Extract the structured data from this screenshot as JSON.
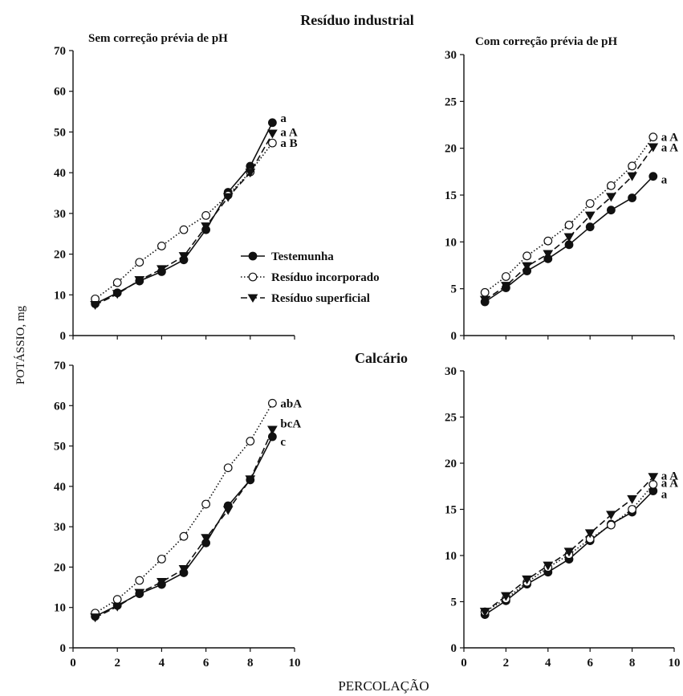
{
  "figure": {
    "row_titles": [
      "Resíduo industrial",
      "Calcário"
    ],
    "col_titles": [
      "Sem correção prévia de pH",
      "Com correção prévia de pH"
    ],
    "ylabel": "POTÁSSIO, mg",
    "xlabel": "PERCOLAÇÃO"
  },
  "legend": {
    "placement": "inside panel 1, center-right",
    "items": [
      {
        "label": "Testemunha",
        "marker": "filled-circle",
        "line": "solid"
      },
      {
        "label": "Resíduo incorporado",
        "marker": "open-circle",
        "line": "dotted"
      },
      {
        "label": "Resíduo superficial",
        "marker": "filled-triangle-down",
        "line": "dashed"
      }
    ]
  },
  "style": {
    "colors": {
      "line": "#111111",
      "marker_fill": "#111111",
      "open_fill": "#ffffff"
    }
  },
  "chart_data": [
    {
      "type": "line",
      "title": "Sem correção prévia de pH",
      "xlabel": "",
      "ylabel": "",
      "xlim": [
        0,
        10
      ],
      "ylim": [
        0,
        70
      ],
      "xticks": [
        0,
        2,
        4,
        6,
        8,
        10
      ],
      "yticks": [
        0,
        10,
        20,
        30,
        40,
        50,
        60,
        70
      ],
      "show_xticklabels": false,
      "x": [
        1,
        2,
        3,
        4,
        5,
        6,
        7,
        8,
        9
      ],
      "series": [
        {
          "name": "Testemunha",
          "values": [
            7.8,
            10.5,
            13.4,
            15.7,
            18.6,
            26.0,
            35.2,
            41.6,
            52.3
          ]
        },
        {
          "name": "Resíduo incorporado",
          "values": [
            9.0,
            13.0,
            18.0,
            22.0,
            26.0,
            29.5,
            34.5,
            40.2,
            47.3
          ]
        },
        {
          "name": "Resíduo superficial",
          "values": [
            7.5,
            10.2,
            13.6,
            16.3,
            19.5,
            26.8,
            34.0,
            40.0,
            49.6
          ]
        }
      ],
      "annotations": [
        {
          "text": "a",
          "series": "Testemunha"
        },
        {
          "text": "a A",
          "series": "Resíduo superficial"
        },
        {
          "text": "a B",
          "series": "Resíduo incorporado"
        }
      ]
    },
    {
      "type": "line",
      "title": "Com correção prévia de pH",
      "xlabel": "",
      "ylabel": "",
      "xlim": [
        0,
        10
      ],
      "ylim": [
        0,
        30
      ],
      "xticks": [
        0,
        2,
        4,
        6,
        8,
        10
      ],
      "yticks": [
        0,
        5,
        10,
        15,
        20,
        25,
        30
      ],
      "show_xticklabels": false,
      "x": [
        1,
        2,
        3,
        4,
        5,
        6,
        7,
        8,
        9
      ],
      "series": [
        {
          "name": "Testemunha",
          "values": [
            3.6,
            5.1,
            6.9,
            8.2,
            9.7,
            11.6,
            13.4,
            14.7,
            17.0
          ]
        },
        {
          "name": "Resíduo incorporado",
          "values": [
            4.6,
            6.3,
            8.5,
            10.1,
            11.8,
            14.1,
            16.0,
            18.1,
            21.2
          ]
        },
        {
          "name": "Resíduo superficial",
          "values": [
            3.8,
            5.3,
            7.4,
            8.7,
            10.5,
            12.8,
            14.8,
            17.0,
            20.1
          ]
        }
      ],
      "annotations": [
        {
          "text": "a A",
          "series": "Resíduo incorporado"
        },
        {
          "text": "a A",
          "series": "Resíduo superficial"
        },
        {
          "text": "a",
          "series": "Testemunha"
        }
      ]
    },
    {
      "type": "line",
      "title": "",
      "xlabel": "",
      "ylabel": "",
      "xlim": [
        0,
        10
      ],
      "ylim": [
        0,
        70
      ],
      "xticks": [
        0,
        2,
        4,
        6,
        8,
        10
      ],
      "yticks": [
        0,
        10,
        20,
        30,
        40,
        50,
        60,
        70
      ],
      "show_xticklabels": true,
      "x": [
        1,
        2,
        3,
        4,
        5,
        6,
        7,
        8,
        9
      ],
      "series": [
        {
          "name": "Testemunha",
          "values": [
            7.8,
            10.5,
            13.4,
            15.7,
            18.6,
            26.0,
            35.2,
            41.6,
            52.3
          ]
        },
        {
          "name": "Resíduo incorporado",
          "values": [
            8.6,
            12.0,
            16.7,
            22.0,
            27.6,
            35.6,
            44.6,
            51.2,
            60.6
          ]
        },
        {
          "name": "Resíduo superficial",
          "values": [
            7.5,
            10.2,
            13.6,
            16.3,
            19.5,
            27.2,
            34.1,
            41.7,
            54.0
          ]
        }
      ],
      "annotations": [
        {
          "text": "abA",
          "series": "Resíduo incorporado"
        },
        {
          "text": "bcA",
          "series": "Resíduo superficial"
        },
        {
          "text": "c",
          "series": "Testemunha"
        }
      ]
    },
    {
      "type": "line",
      "title": "",
      "xlabel": "",
      "ylabel": "",
      "xlim": [
        0,
        10
      ],
      "ylim": [
        0,
        30
      ],
      "xticks": [
        0,
        2,
        4,
        6,
        8,
        10
      ],
      "yticks": [
        0,
        5,
        10,
        15,
        20,
        25,
        30
      ],
      "show_xticklabels": true,
      "x": [
        1,
        2,
        3,
        4,
        5,
        6,
        7,
        8,
        9
      ],
      "series": [
        {
          "name": "Testemunha",
          "values": [
            3.6,
            5.1,
            6.9,
            8.2,
            9.6,
            11.6,
            13.4,
            14.7,
            17.0
          ]
        },
        {
          "name": "Resíduo incorporado",
          "values": [
            3.9,
            5.3,
            7.1,
            8.7,
            10.1,
            11.8,
            13.3,
            15.0,
            17.7
          ]
        },
        {
          "name": "Resíduo superficial",
          "values": [
            3.9,
            5.6,
            7.4,
            8.9,
            10.4,
            12.4,
            14.4,
            16.1,
            18.5
          ]
        }
      ],
      "annotations": [
        {
          "text": "a A",
          "series": "Resíduo superficial"
        },
        {
          "text": "a A",
          "series": "Resíduo incorporado"
        },
        {
          "text": "a",
          "series": "Testemunha"
        }
      ]
    }
  ]
}
